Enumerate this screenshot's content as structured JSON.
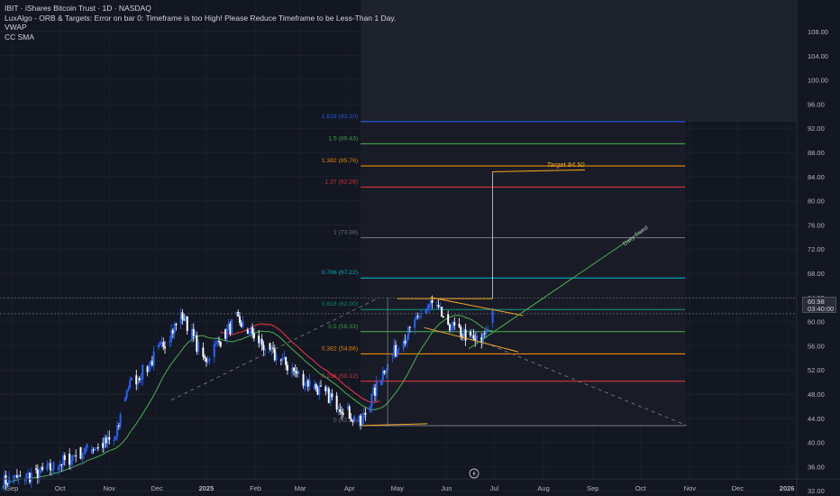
{
  "legend": {
    "symbol_line": "IBIT · iShares Bitcoin Trust · 1D · NASDAQ",
    "indicators": [
      "LuxAlgo - ORB & Targets: Error on bar 0: Timeframe is too High! Please Reduce Timeframe to be Less-Than 1 Day.",
      "VWAP",
      "CC SMA"
    ]
  },
  "price_scale": {
    "ticks": [
      "108.00",
      "104.00",
      "100.00",
      "96.00",
      "92.00",
      "88.00",
      "84.00",
      "80.00",
      "76.00",
      "72.00",
      "68.00",
      "64.00",
      "60.00",
      "56.00",
      "52.00",
      "48.00",
      "44.00",
      "40.00",
      "36.00",
      "32.00"
    ],
    "current_price": "60.98",
    "countdown": "03:40:00"
  },
  "time_scale": {
    "ticks": [
      "Sep",
      "Oct",
      "Nov",
      "Dec",
      "2025",
      "Feb",
      "Mar",
      "Apr",
      "May",
      "Jun",
      "Jul",
      "Aug",
      "Sep",
      "Oct",
      "Nov",
      "Dec",
      "2026"
    ]
  },
  "fib_levels": [
    {
      "label": "1.618 (93.10)",
      "price": 93.1,
      "color": "#2962ff"
    },
    {
      "label": "1.5 (89.43)",
      "price": 89.43,
      "color": "#4caf50"
    },
    {
      "label": "1.382 (85.76)",
      "price": 85.76,
      "color": "#ff9800"
    },
    {
      "label": "1.27 (82.28)",
      "price": 82.28,
      "color": "#f23645"
    },
    {
      "label": "1 (73.88)",
      "price": 73.88,
      "color": "#787b86"
    },
    {
      "label": "0.786 (67.22)",
      "price": 67.22,
      "color": "#00bcd4"
    },
    {
      "label": "0.618 (62.00)",
      "price": 62.0,
      "color": "#089981"
    },
    {
      "label": "0.5 (58.33)",
      "price": 58.33,
      "color": "#4caf50"
    },
    {
      "label": "0.382 (54.66)",
      "price": 54.66,
      "color": "#ff9800"
    },
    {
      "label": "0.236 (50.12)",
      "price": 50.12,
      "color": "#f23645"
    },
    {
      "label": "0 (42.78)",
      "price": 42.78,
      "color": "#787b86"
    }
  ],
  "annotations": {
    "target_label": "Target 84.50",
    "trend_label": "Daily Trend"
  },
  "colors": {
    "background": "#131722",
    "candle_up": "#2962ff",
    "candle_down": "#ffffff",
    "sma": "#4caf50",
    "vwap": "#f23645",
    "drawing": "#f5a623"
  },
  "chart_data": {
    "type": "line",
    "title": "IBIT · iShares Bitcoin Trust · 1D · NASDAQ",
    "series": [
      {
        "name": "IBIT",
        "x": [
          "2024-08-26",
          "2024-09-20",
          "2024-10-15",
          "2024-11-05",
          "2024-11-12",
          "2024-11-25",
          "2024-12-17",
          "2024-12-31",
          "2025-01-20",
          "2025-02-10",
          "2025-03-03",
          "2025-03-20",
          "2025-04-08",
          "2025-04-25",
          "2025-05-22",
          "2025-06-05",
          "2025-06-22",
          "2025-06-30"
        ],
        "values": [
          33.5,
          35.0,
          38.5,
          40.5,
          49.0,
          52.5,
          61.0,
          53.5,
          60.5,
          55.0,
          50.5,
          47.5,
          43.0,
          53.5,
          63.0,
          59.0,
          56.5,
          60.98
        ]
      }
    ],
    "ylim": [
      32,
      108
    ]
  }
}
